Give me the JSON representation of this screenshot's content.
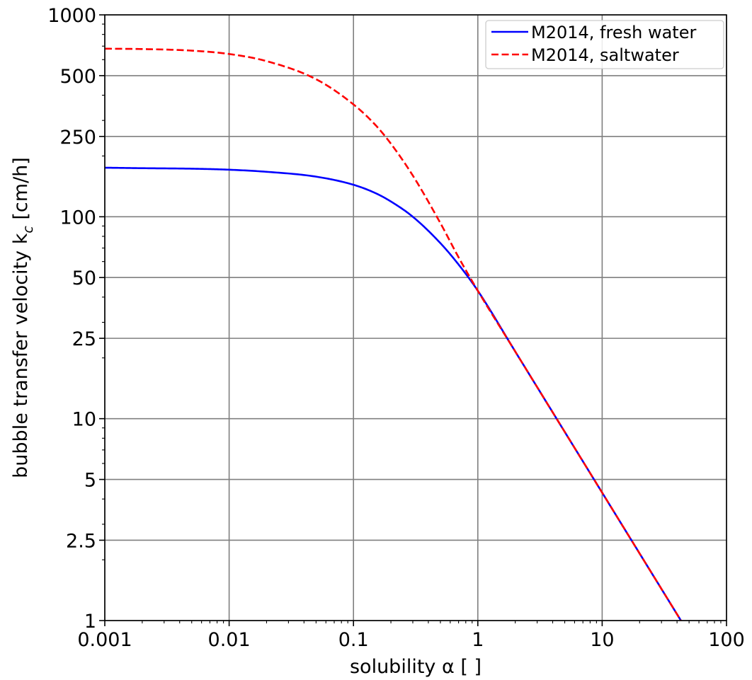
{
  "chart_data": {
    "type": "line",
    "xscale": "log",
    "yscale": "log",
    "xlim": [
      0.001,
      100
    ],
    "ylim": [
      1,
      1000
    ],
    "xlabel": "solubility α [ ]",
    "ylabel": "bubble transfer velocity k_c [cm/h]",
    "ylabel_main": "bubble transfer velocity k",
    "ylabel_sub": "c",
    "ylabel_tail": " [cm/h]",
    "grid": true,
    "legend_position": "top-right",
    "x_ticks": [
      0.001,
      0.01,
      0.1,
      1,
      10,
      100
    ],
    "x_tick_labels": [
      "0.001",
      "0.01",
      "0.1",
      "1",
      "10",
      "100"
    ],
    "y_ticks": [
      1,
      2.5,
      5,
      10,
      25,
      50,
      100,
      250,
      500,
      1000
    ],
    "y_tick_labels": [
      "1",
      "2.5",
      "5",
      "10",
      "25",
      "50",
      "100",
      "250",
      "500",
      "1000"
    ],
    "series": [
      {
        "name": "M2014, fresh water",
        "color": "#0000ff",
        "style": "solid",
        "x": [
          0.001,
          0.002,
          0.005,
          0.01,
          0.02,
          0.05,
          0.1,
          0.15,
          0.2,
          0.3,
          0.5,
          0.7,
          1,
          2,
          5,
          10,
          20,
          43
        ],
        "y": [
          175,
          174,
          173,
          171,
          167,
          158,
          144,
          131,
          119,
          100,
          74,
          58,
          43,
          21.5,
          8.6,
          4.3,
          2.15,
          1.0
        ]
      },
      {
        "name": "M2014, saltwater",
        "color": "#ff0000",
        "style": "dashed",
        "x": [
          0.001,
          0.002,
          0.005,
          0.01,
          0.02,
          0.05,
          0.1,
          0.15,
          0.2,
          0.3,
          0.5,
          0.7,
          1,
          2,
          5,
          10,
          20,
          43
        ],
        "y": [
          680,
          677,
          665,
          640,
          590,
          480,
          360,
          285,
          230,
          160,
          93,
          63,
          43,
          21.5,
          8.6,
          4.3,
          2.15,
          1.0
        ]
      }
    ]
  }
}
